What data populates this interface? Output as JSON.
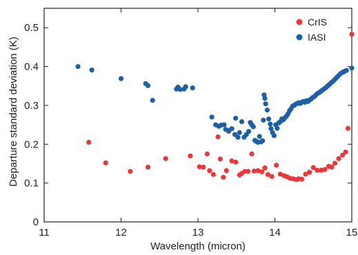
{
  "chart_data": {
    "type": "scatter",
    "title": "",
    "xlabel": "Wavelength (micron)",
    "ylabel": "Departure standard deviation (K)",
    "xlim": [
      11,
      15
    ],
    "ylim": [
      0,
      0.55
    ],
    "xticks": [
      11,
      12,
      13,
      14,
      15
    ],
    "yticks": [
      0,
      0.1,
      0.2,
      0.3,
      0.4,
      0.5
    ],
    "grid": false,
    "legend_position": "top-right",
    "series": [
      {
        "name": "CrIS",
        "color": "#e8393a",
        "points": [
          [
            11.58,
            0.205
          ],
          [
            11.8,
            0.152
          ],
          [
            12.12,
            0.13
          ],
          [
            12.35,
            0.141
          ],
          [
            12.58,
            0.163
          ],
          [
            12.9,
            0.17
          ],
          [
            13.02,
            0.142
          ],
          [
            13.07,
            0.141
          ],
          [
            13.12,
            0.175
          ],
          [
            13.15,
            0.132
          ],
          [
            13.2,
            0.122
          ],
          [
            13.26,
            0.219
          ],
          [
            13.29,
            0.162
          ],
          [
            13.33,
            0.115
          ],
          [
            13.37,
            0.132
          ],
          [
            13.4,
            0.233
          ],
          [
            13.44,
            0.157
          ],
          [
            13.49,
            0.154
          ],
          [
            13.54,
            0.121
          ],
          [
            13.57,
            0.125
          ],
          [
            13.61,
            0.13
          ],
          [
            13.65,
            0.13
          ],
          [
            13.7,
            0.175
          ],
          [
            13.73,
            0.131
          ],
          [
            13.78,
            0.132
          ],
          [
            13.83,
            0.129
          ],
          [
            13.87,
            0.139
          ],
          [
            13.91,
            0.122
          ],
          [
            13.96,
            0.117
          ],
          [
            14.02,
            0.146
          ],
          [
            14.07,
            0.123
          ],
          [
            14.12,
            0.119
          ],
          [
            14.16,
            0.116
          ],
          [
            14.2,
            0.112
          ],
          [
            14.24,
            0.111
          ],
          [
            14.28,
            0.109
          ],
          [
            14.31,
            0.111
          ],
          [
            14.35,
            0.11
          ],
          [
            14.4,
            0.123
          ],
          [
            14.45,
            0.128
          ],
          [
            14.5,
            0.14
          ],
          [
            14.55,
            0.133
          ],
          [
            14.6,
            0.133
          ],
          [
            14.65,
            0.135
          ],
          [
            14.7,
            0.143
          ],
          [
            14.74,
            0.141
          ],
          [
            14.78,
            0.151
          ],
          [
            14.83,
            0.163
          ],
          [
            14.88,
            0.172
          ],
          [
            14.92,
            0.18
          ],
          [
            14.95,
            0.241
          ],
          [
            15.0,
            0.483
          ]
        ]
      },
      {
        "name": "IASI",
        "color": "#1e5fa6",
        "points": [
          [
            11.44,
            0.4
          ],
          [
            11.62,
            0.391
          ],
          [
            12.0,
            0.369
          ],
          [
            12.32,
            0.356
          ],
          [
            12.35,
            0.351
          ],
          [
            12.41,
            0.313
          ],
          [
            12.72,
            0.342
          ],
          [
            12.74,
            0.347
          ],
          [
            12.77,
            0.341
          ],
          [
            12.82,
            0.342
          ],
          [
            12.84,
            0.348
          ],
          [
            12.93,
            0.345
          ],
          [
            13.18,
            0.27
          ],
          [
            13.23,
            0.25
          ],
          [
            13.27,
            0.246
          ],
          [
            13.3,
            0.249
          ],
          [
            13.34,
            0.25
          ],
          [
            13.36,
            0.238
          ],
          [
            13.4,
            0.235
          ],
          [
            13.44,
            0.24
          ],
          [
            13.48,
            0.225
          ],
          [
            13.49,
            0.267
          ],
          [
            13.52,
            0.218
          ],
          [
            13.54,
            0.23
          ],
          [
            13.57,
            0.258
          ],
          [
            13.6,
            0.218
          ],
          [
            13.63,
            0.225
          ],
          [
            13.66,
            0.233
          ],
          [
            13.68,
            0.256
          ],
          [
            13.7,
            0.25
          ],
          [
            13.72,
            0.245
          ],
          [
            13.74,
            0.21
          ],
          [
            13.76,
            0.207
          ],
          [
            13.78,
            0.205
          ],
          [
            13.8,
            0.22
          ],
          [
            13.82,
            0.206
          ],
          [
            13.84,
            0.209
          ],
          [
            13.85,
            0.262
          ],
          [
            13.86,
            0.327
          ],
          [
            13.87,
            0.318
          ],
          [
            13.88,
            0.304
          ],
          [
            13.9,
            0.288
          ],
          [
            13.92,
            0.265
          ],
          [
            13.94,
            0.252
          ],
          [
            13.95,
            0.24
          ],
          [
            13.97,
            0.23
          ],
          [
            13.99,
            0.222
          ],
          [
            14.01,
            0.25
          ],
          [
            14.03,
            0.241
          ],
          [
            14.05,
            0.255
          ],
          [
            14.07,
            0.258
          ],
          [
            14.09,
            0.265
          ],
          [
            14.11,
            0.263
          ],
          [
            14.13,
            0.268
          ],
          [
            14.15,
            0.272
          ],
          [
            14.17,
            0.278
          ],
          [
            14.19,
            0.286
          ],
          [
            14.21,
            0.291
          ],
          [
            14.23,
            0.298
          ],
          [
            14.25,
            0.3
          ],
          [
            14.27,
            0.303
          ],
          [
            14.29,
            0.305
          ],
          [
            14.31,
            0.307
          ],
          [
            14.33,
            0.305
          ],
          [
            14.35,
            0.308
          ],
          [
            14.37,
            0.31
          ],
          [
            14.39,
            0.308
          ],
          [
            14.41,
            0.312
          ],
          [
            14.43,
            0.31
          ],
          [
            14.45,
            0.314
          ],
          [
            14.47,
            0.316
          ],
          [
            14.49,
            0.32
          ],
          [
            14.51,
            0.322
          ],
          [
            14.53,
            0.326
          ],
          [
            14.55,
            0.33
          ],
          [
            14.57,
            0.332
          ],
          [
            14.59,
            0.335
          ],
          [
            14.61,
            0.338
          ],
          [
            14.63,
            0.341
          ],
          [
            14.65,
            0.344
          ],
          [
            14.67,
            0.347
          ],
          [
            14.69,
            0.351
          ],
          [
            14.71,
            0.354
          ],
          [
            14.73,
            0.358
          ],
          [
            14.75,
            0.361
          ],
          [
            14.77,
            0.365
          ],
          [
            14.79,
            0.369
          ],
          [
            14.81,
            0.373
          ],
          [
            14.83,
            0.377
          ],
          [
            14.85,
            0.381
          ],
          [
            14.87,
            0.384
          ],
          [
            14.89,
            0.386
          ],
          [
            14.91,
            0.388
          ],
          [
            14.93,
            0.39
          ],
          [
            15.0,
            0.396
          ]
        ]
      }
    ]
  }
}
